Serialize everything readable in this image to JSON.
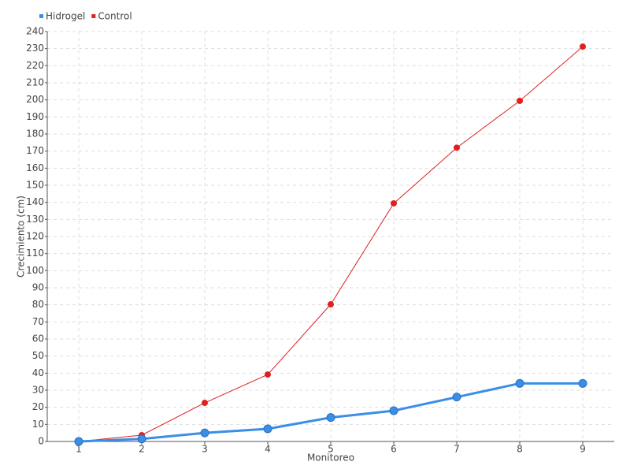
{
  "chart_data": {
    "type": "line",
    "x_label": "Monitoreo",
    "y_label": "Crecimiento (cm)",
    "categories": [
      "1",
      "2",
      "3",
      "4",
      "5",
      "6",
      "7",
      "8",
      "9"
    ],
    "series": [
      {
        "name": "Hidrogel",
        "color": "#3a8ee6",
        "values": [
          0,
          1.5,
          5,
          7.4,
          14,
          18,
          26,
          34,
          34
        ]
      },
      {
        "name": "Control",
        "color": "#e02020",
        "values": [
          0,
          3.7,
          22.6,
          39.2,
          80.3,
          139.4,
          172,
          199.4,
          231.2
        ]
      }
    ],
    "ylim": [
      0,
      240
    ],
    "yticks": [
      0,
      10,
      20,
      30,
      40,
      50,
      60,
      70,
      80,
      90,
      100,
      110,
      120,
      130,
      140,
      150,
      160,
      170,
      180,
      190,
      200,
      210,
      220,
      230,
      240
    ],
    "grid": true,
    "legend": "top-left"
  }
}
